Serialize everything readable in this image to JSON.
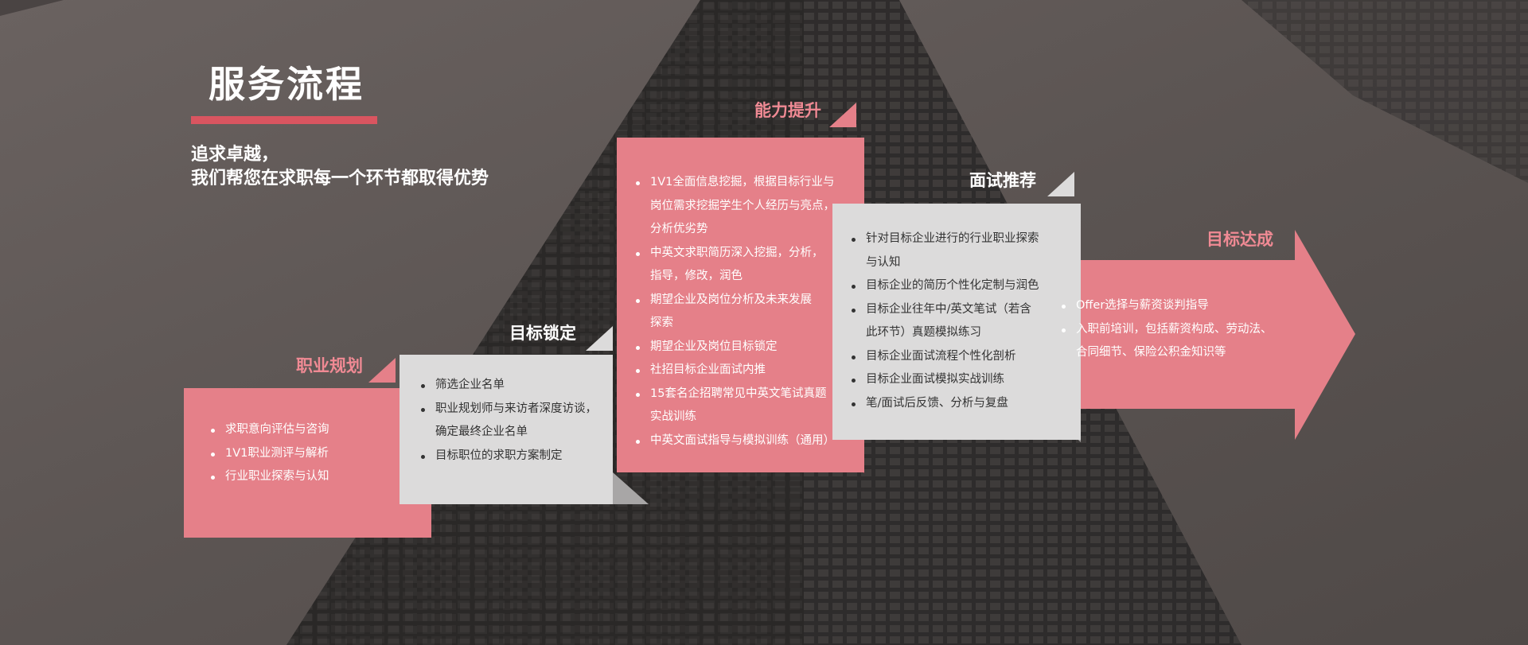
{
  "header": {
    "title": "服务流程",
    "slogan_line1": "追求卓越，",
    "slogan_line2": "我们帮您在求职每一个环节都取得优势"
  },
  "colors": {
    "accent": "#d95560",
    "pink_card": "#e58089",
    "light_card": "#dcdbdb",
    "label_pink": "#f08a94"
  },
  "steps": [
    {
      "label": "职业规划",
      "items": [
        [
          "求职意向评估与咨询"
        ],
        [
          "1V1职业测评与解析"
        ],
        [
          "行业职业探索与认知"
        ]
      ]
    },
    {
      "label": "目标锁定",
      "items": [
        [
          "筛选企业名单"
        ],
        [
          "职业规划师与来访者深度访谈，",
          "确定最终企业名单"
        ],
        [
          "目标职位的求职方案制定"
        ]
      ]
    },
    {
      "label": "能力提升",
      "items": [
        [
          "1V1全面信息挖掘，根据目标行业与",
          "岗位需求挖掘学生个人经历与亮点，",
          "分析优劣势"
        ],
        [
          "中英文求职简历深入挖掘，分析，",
          "指导，修改，润色"
        ],
        [
          "期望企业及岗位分析及未来发展",
          "探索"
        ],
        [
          "期望企业及岗位目标锁定"
        ],
        [
          "社招目标企业面试内推"
        ],
        [
          "15套名企招聘常见中英文笔试真题",
          "实战训练"
        ],
        [
          "中英文面试指导与模拟训练（通用）"
        ]
      ]
    },
    {
      "label": "面试推荐",
      "items": [
        [
          "针对目标企业进行的行业职业探索",
          "与认知"
        ],
        [
          "目标企业的简历个性化定制与润色"
        ],
        [
          "目标企业往年中/英文笔试（若含",
          "此环节）真题模拟练习"
        ],
        [
          "目标企业面试流程个性化剖析"
        ],
        [
          "目标企业面试模拟实战训练"
        ],
        [
          "笔/面试后反馈、分析与复盘"
        ]
      ]
    },
    {
      "label": "目标达成",
      "items": [
        [
          "Offer选择与薪资谈判指导"
        ],
        [
          "入职前培训，包括薪资构成、劳动法、",
          "合同细节、保险公积金知识等"
        ]
      ]
    }
  ]
}
